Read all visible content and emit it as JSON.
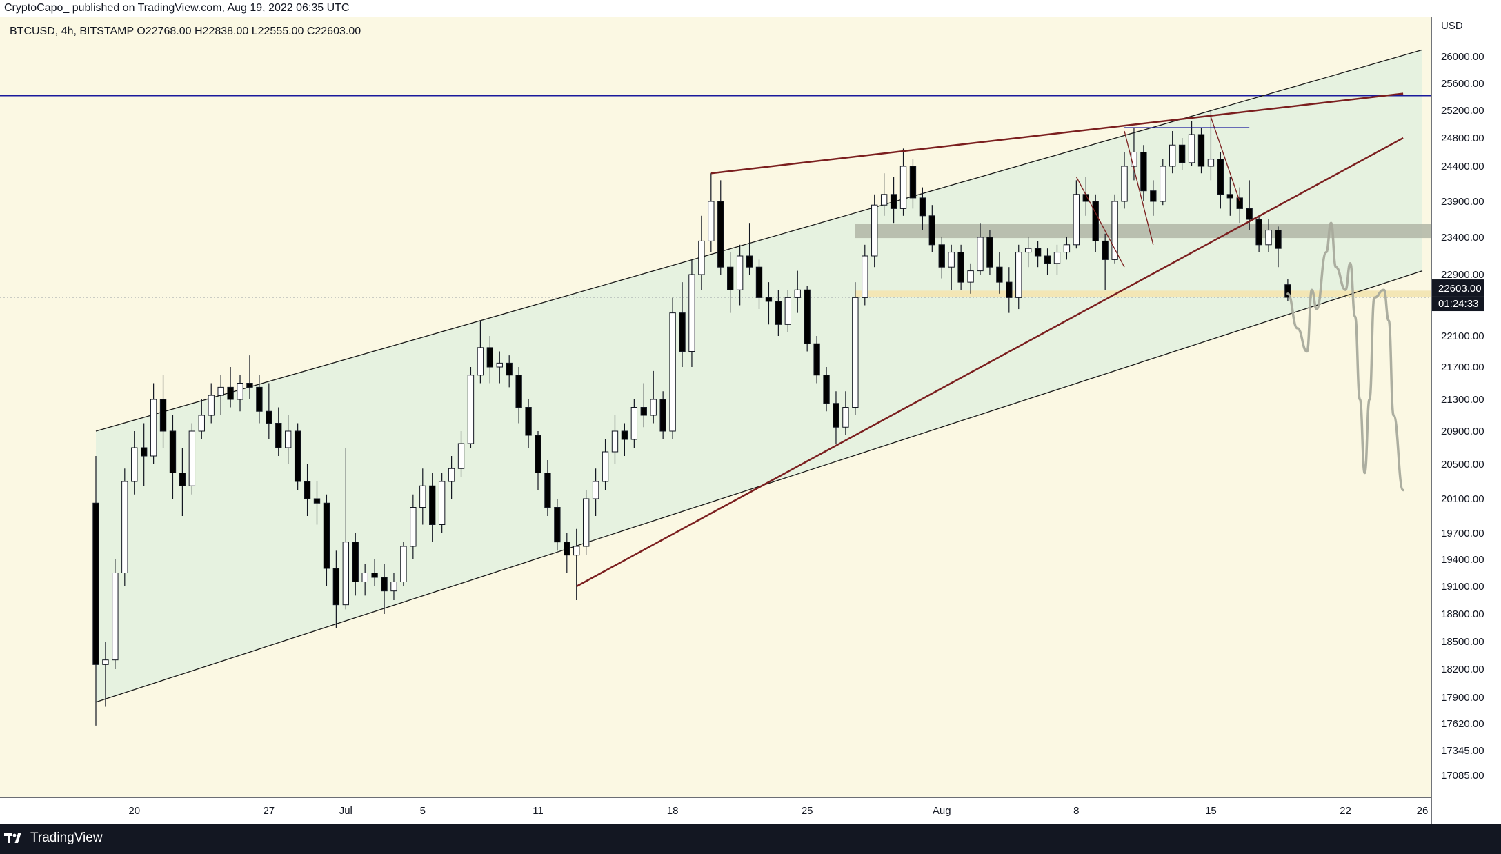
{
  "header": {
    "publish_info": "CryptoCapo_ published on TradingView.com, Aug 19, 2022 06:35 UTC"
  },
  "footer": {
    "brand": "TradingView"
  },
  "colors": {
    "background": "#fbf8e3",
    "channel_fill": "#e6f2e0",
    "candle_up": "#ffffff",
    "candle_down": "#000000",
    "candle_border": "#131722",
    "trendline": "#7b1f1f",
    "horizontal_level": "#1a1a9c",
    "resistance_zone": "#b0b6a6",
    "support_zone": "#f3e6b5",
    "projection": "#a8aa9c",
    "price_label_bg": "#131722"
  },
  "chart_data": {
    "type": "candlestick",
    "symbol": "BTCUSD",
    "timeframe": "4h",
    "exchange": "BITSTAMP",
    "ohlc": {
      "open": "O22768.00",
      "high": "H22838.00",
      "low": "L22555.00",
      "close": "C22603.00"
    },
    "currency": "USD",
    "y_axis_ticks": [
      "26000.00",
      "25600.00",
      "25200.00",
      "24800.00",
      "24400.00",
      "23900.00",
      "23400.00",
      "22900.00",
      "22100.00",
      "21700.00",
      "21300.00",
      "20900.00",
      "20500.00",
      "20100.00",
      "19700.00",
      "19400.00",
      "19100.00",
      "18800.00",
      "18500.00",
      "18200.00",
      "17900.00",
      "17620.00",
      "17345.00",
      "17085.00"
    ],
    "x_axis_ticks": [
      "20",
      "27",
      "Jul",
      "5",
      "11",
      "18",
      "25",
      "Aug",
      "8",
      "15",
      "22",
      "26"
    ],
    "last_price": "22603.00",
    "countdown": "01:24:33",
    "horizontal_level": 25420,
    "resistance_zone": [
      23390,
      23590
    ],
    "support_zone": [
      22610,
      22690
    ],
    "candles": [
      {
        "d": "Jun 18 00:00",
        "o": 20050,
        "h": 20600,
        "l": 17600,
        "c": 18250
      },
      {
        "d": "Jun 18 12:00",
        "o": 18250,
        "h": 18500,
        "l": 17800,
        "c": 18300
      },
      {
        "d": "Jun 19 00:00",
        "o": 18300,
        "h": 19400,
        "l": 18200,
        "c": 19250
      },
      {
        "d": "Jun 19 12:00",
        "o": 19250,
        "h": 20450,
        "l": 19100,
        "c": 20300
      },
      {
        "d": "Jun 20 00:00",
        "o": 20300,
        "h": 20900,
        "l": 20150,
        "c": 20700
      },
      {
        "d": "Jun 20 12:00",
        "o": 20700,
        "h": 21000,
        "l": 20250,
        "c": 20600
      },
      {
        "d": "Jun 21 00:00",
        "o": 20600,
        "h": 21500,
        "l": 20500,
        "c": 21300
      },
      {
        "d": "Jun 21 12:00",
        "o": 21300,
        "h": 21600,
        "l": 20700,
        "c": 20900
      },
      {
        "d": "Jun 22 00:00",
        "o": 20900,
        "h": 21100,
        "l": 20100,
        "c": 20400
      },
      {
        "d": "Jun 22 12:00",
        "o": 20400,
        "h": 20700,
        "l": 19900,
        "c": 20250
      },
      {
        "d": "Jun 23 00:00",
        "o": 20250,
        "h": 21000,
        "l": 20150,
        "c": 20900
      },
      {
        "d": "Jun 23 12:00",
        "o": 20900,
        "h": 21300,
        "l": 20800,
        "c": 21100
      },
      {
        "d": "Jun 24 00:00",
        "o": 21100,
        "h": 21500,
        "l": 21000,
        "c": 21350
      },
      {
        "d": "Jun 24 12:00",
        "o": 21350,
        "h": 21600,
        "l": 21100,
        "c": 21450
      },
      {
        "d": "Jun 25 00:00",
        "o": 21450,
        "h": 21700,
        "l": 21200,
        "c": 21300
      },
      {
        "d": "Jun 25 12:00",
        "o": 21300,
        "h": 21600,
        "l": 21150,
        "c": 21500
      },
      {
        "d": "Jun 26 00:00",
        "o": 21500,
        "h": 21850,
        "l": 21300,
        "c": 21450
      },
      {
        "d": "Jun 26 12:00",
        "o": 21450,
        "h": 21600,
        "l": 21000,
        "c": 21150
      },
      {
        "d": "Jun 27 00:00",
        "o": 21150,
        "h": 21500,
        "l": 20800,
        "c": 21000
      },
      {
        "d": "Jun 27 12:00",
        "o": 21000,
        "h": 21200,
        "l": 20600,
        "c": 20700
      },
      {
        "d": "Jun 28 00:00",
        "o": 20700,
        "h": 21100,
        "l": 20500,
        "c": 20900
      },
      {
        "d": "Jun 28 12:00",
        "o": 20900,
        "h": 21000,
        "l": 20200,
        "c": 20300
      },
      {
        "d": "Jun 29 00:00",
        "o": 20300,
        "h": 20500,
        "l": 19900,
        "c": 20100
      },
      {
        "d": "Jun 29 12:00",
        "o": 20100,
        "h": 20300,
        "l": 19800,
        "c": 20050
      },
      {
        "d": "Jun 30 00:00",
        "o": 20050,
        "h": 20150,
        "l": 19100,
        "c": 19300
      },
      {
        "d": "Jun 30 12:00",
        "o": 19300,
        "h": 19500,
        "l": 18650,
        "c": 18900
      },
      {
        "d": "Jul 1 00:00",
        "o": 18900,
        "h": 20700,
        "l": 18850,
        "c": 19600
      },
      {
        "d": "Jul 1 12:00",
        "o": 19600,
        "h": 19700,
        "l": 19000,
        "c": 19150
      },
      {
        "d": "Jul 2 00:00",
        "o": 19150,
        "h": 19350,
        "l": 19000,
        "c": 19250
      },
      {
        "d": "Jul 2 12:00",
        "o": 19250,
        "h": 19400,
        "l": 19100,
        "c": 19200
      },
      {
        "d": "Jul 3 00:00",
        "o": 19200,
        "h": 19350,
        "l": 18800,
        "c": 19050
      },
      {
        "d": "Jul 3 12:00",
        "o": 19050,
        "h": 19250,
        "l": 18950,
        "c": 19150
      },
      {
        "d": "Jul 4 00:00",
        "o": 19150,
        "h": 19600,
        "l": 19100,
        "c": 19550
      },
      {
        "d": "Jul 4 12:00",
        "o": 19550,
        "h": 20150,
        "l": 19400,
        "c": 20000
      },
      {
        "d": "Jul 5 00:00",
        "o": 20000,
        "h": 20450,
        "l": 19800,
        "c": 20250
      },
      {
        "d": "Jul 5 12:00",
        "o": 20250,
        "h": 20400,
        "l": 19600,
        "c": 19800
      },
      {
        "d": "Jul 6 00:00",
        "o": 19800,
        "h": 20400,
        "l": 19700,
        "c": 20300
      },
      {
        "d": "Jul 6 12:00",
        "o": 20300,
        "h": 20600,
        "l": 20100,
        "c": 20450
      },
      {
        "d": "Jul 7 00:00",
        "o": 20450,
        "h": 20900,
        "l": 20350,
        "c": 20750
      },
      {
        "d": "Jul 7 12:00",
        "o": 20750,
        "h": 21700,
        "l": 20700,
        "c": 21600
      },
      {
        "d": "Jul 8 00:00",
        "o": 21600,
        "h": 22300,
        "l": 21500,
        "c": 21950
      },
      {
        "d": "Jul 8 12:00",
        "o": 21950,
        "h": 22100,
        "l": 21500,
        "c": 21700
      },
      {
        "d": "Jul 9 00:00",
        "o": 21700,
        "h": 21900,
        "l": 21500,
        "c": 21750
      },
      {
        "d": "Jul 9 12:00",
        "o": 21750,
        "h": 21850,
        "l": 21450,
        "c": 21600
      },
      {
        "d": "Jul 10 00:00",
        "o": 21600,
        "h": 21700,
        "l": 21000,
        "c": 21200
      },
      {
        "d": "Jul 10 12:00",
        "o": 21200,
        "h": 21300,
        "l": 20700,
        "c": 20850
      },
      {
        "d": "Jul 11 00:00",
        "o": 20850,
        "h": 20900,
        "l": 20200,
        "c": 20400
      },
      {
        "d": "Jul 11 12:00",
        "o": 20400,
        "h": 20550,
        "l": 19900,
        "c": 20000
      },
      {
        "d": "Jul 12 00:00",
        "o": 20000,
        "h": 20100,
        "l": 19500,
        "c": 19600
      },
      {
        "d": "Jul 12 12:00",
        "o": 19600,
        "h": 19700,
        "l": 19250,
        "c": 19450
      },
      {
        "d": "Jul 13 00:00",
        "o": 19450,
        "h": 19750,
        "l": 18950,
        "c": 19550
      },
      {
        "d": "Jul 13 12:00",
        "o": 19550,
        "h": 20200,
        "l": 19450,
        "c": 20100
      },
      {
        "d": "Jul 14 00:00",
        "o": 20100,
        "h": 20450,
        "l": 19900,
        "c": 20300
      },
      {
        "d": "Jul 14 12:00",
        "o": 20300,
        "h": 20800,
        "l": 20200,
        "c": 20650
      },
      {
        "d": "Jul 15 00:00",
        "o": 20650,
        "h": 21100,
        "l": 20500,
        "c": 20900
      },
      {
        "d": "Jul 15 12:00",
        "o": 20900,
        "h": 21000,
        "l": 20600,
        "c": 20800
      },
      {
        "d": "Jul 16 00:00",
        "o": 20800,
        "h": 21300,
        "l": 20700,
        "c": 21200
      },
      {
        "d": "Jul 16 12:00",
        "o": 21200,
        "h": 21500,
        "l": 20950,
        "c": 21100
      },
      {
        "d": "Jul 17 00:00",
        "o": 21100,
        "h": 21650,
        "l": 21000,
        "c": 21300
      },
      {
        "d": "Jul 17 12:00",
        "o": 21300,
        "h": 21400,
        "l": 20800,
        "c": 20900
      },
      {
        "d": "Jul 18 00:00",
        "o": 20900,
        "h": 22600,
        "l": 20800,
        "c": 22400
      },
      {
        "d": "Jul 18 12:00",
        "o": 22400,
        "h": 22800,
        "l": 21700,
        "c": 21900
      },
      {
        "d": "Jul 19 00:00",
        "o": 21900,
        "h": 23100,
        "l": 21700,
        "c": 22900
      },
      {
        "d": "Jul 19 12:00",
        "o": 22900,
        "h": 23700,
        "l": 22700,
        "c": 23350
      },
      {
        "d": "Jul 20 00:00",
        "o": 23350,
        "h": 24300,
        "l": 23200,
        "c": 23900
      },
      {
        "d": "Jul 20 12:00",
        "o": 23900,
        "h": 24200,
        "l": 22900,
        "c": 23000
      },
      {
        "d": "Jul 21 00:00",
        "o": 23000,
        "h": 23200,
        "l": 22400,
        "c": 22700
      },
      {
        "d": "Jul 21 12:00",
        "o": 22700,
        "h": 23300,
        "l": 22500,
        "c": 23150
      },
      {
        "d": "Jul 22 00:00",
        "o": 23150,
        "h": 23600,
        "l": 22900,
        "c": 23000
      },
      {
        "d": "Jul 22 12:00",
        "o": 23000,
        "h": 23100,
        "l": 22450,
        "c": 22600
      },
      {
        "d": "Jul 23 00:00",
        "o": 22600,
        "h": 22800,
        "l": 22250,
        "c": 22550
      },
      {
        "d": "Jul 23 12:00",
        "o": 22550,
        "h": 22700,
        "l": 22100,
        "c": 22250
      },
      {
        "d": "Jul 24 00:00",
        "o": 22250,
        "h": 22700,
        "l": 22150,
        "c": 22600
      },
      {
        "d": "Jul 24 12:00",
        "o": 22600,
        "h": 22950,
        "l": 22400,
        "c": 22700
      },
      {
        "d": "Jul 25 00:00",
        "o": 22700,
        "h": 22750,
        "l": 21900,
        "c": 22000
      },
      {
        "d": "Jul 25 12:00",
        "o": 22000,
        "h": 22100,
        "l": 21500,
        "c": 21600
      },
      {
        "d": "Jul 26 00:00",
        "o": 21600,
        "h": 21700,
        "l": 21150,
        "c": 21250
      },
      {
        "d": "Jul 26 12:00",
        "o": 21250,
        "h": 21400,
        "l": 20750,
        "c": 20950
      },
      {
        "d": "Jul 27 00:00",
        "o": 20950,
        "h": 21400,
        "l": 20850,
        "c": 21200
      },
      {
        "d": "Jul 27 12:00",
        "o": 21200,
        "h": 22800,
        "l": 21100,
        "c": 22600
      },
      {
        "d": "Jul 28 00:00",
        "o": 22600,
        "h": 23300,
        "l": 22500,
        "c": 23150
      },
      {
        "d": "Jul 28 12:00",
        "o": 23150,
        "h": 24000,
        "l": 23000,
        "c": 23850
      },
      {
        "d": "Jul 29 00:00",
        "o": 23850,
        "h": 24300,
        "l": 23700,
        "c": 24000
      },
      {
        "d": "Jul 29 12:00",
        "o": 24000,
        "h": 24250,
        "l": 23600,
        "c": 23800
      },
      {
        "d": "Jul 30 00:00",
        "o": 23800,
        "h": 24650,
        "l": 23700,
        "c": 24400
      },
      {
        "d": "Jul 30 12:00",
        "o": 24400,
        "h": 24500,
        "l": 23800,
        "c": 23950
      },
      {
        "d": "Jul 31 00:00",
        "o": 23950,
        "h": 24100,
        "l": 23500,
        "c": 23700
      },
      {
        "d": "Jul 31 12:00",
        "o": 23700,
        "h": 23850,
        "l": 23200,
        "c": 23300
      },
      {
        "d": "Aug 1 00:00",
        "o": 23300,
        "h": 23400,
        "l": 22850,
        "c": 23000
      },
      {
        "d": "Aug 1 12:00",
        "o": 23000,
        "h": 23300,
        "l": 22700,
        "c": 23200
      },
      {
        "d": "Aug 2 00:00",
        "o": 23200,
        "h": 23300,
        "l": 22700,
        "c": 22800
      },
      {
        "d": "Aug 2 12:00",
        "o": 22800,
        "h": 23050,
        "l": 22650,
        "c": 22950
      },
      {
        "d": "Aug 3 00:00",
        "o": 22950,
        "h": 23600,
        "l": 22900,
        "c": 23400
      },
      {
        "d": "Aug 3 12:00",
        "o": 23400,
        "h": 23500,
        "l": 22900,
        "c": 23000
      },
      {
        "d": "Aug 4 00:00",
        "o": 23000,
        "h": 23200,
        "l": 22650,
        "c": 22800
      },
      {
        "d": "Aug 4 12:00",
        "o": 22800,
        "h": 23000,
        "l": 22400,
        "c": 22600
      },
      {
        "d": "Aug 5 00:00",
        "o": 22600,
        "h": 23300,
        "l": 22450,
        "c": 23200
      },
      {
        "d": "Aug 5 12:00",
        "o": 23200,
        "h": 23400,
        "l": 23000,
        "c": 23250
      },
      {
        "d": "Aug 6 00:00",
        "o": 23250,
        "h": 23350,
        "l": 23000,
        "c": 23150
      },
      {
        "d": "Aug 6 12:00",
        "o": 23150,
        "h": 23250,
        "l": 22900,
        "c": 23050
      },
      {
        "d": "Aug 7 00:00",
        "o": 23050,
        "h": 23300,
        "l": 22900,
        "c": 23200
      },
      {
        "d": "Aug 7 12:00",
        "o": 23200,
        "h": 23400,
        "l": 23100,
        "c": 23300
      },
      {
        "d": "Aug 8 00:00",
        "o": 23300,
        "h": 24200,
        "l": 23250,
        "c": 24000
      },
      {
        "d": "Aug 8 12:00",
        "o": 24000,
        "h": 24250,
        "l": 23700,
        "c": 23900
      },
      {
        "d": "Aug 9 00:00",
        "o": 23900,
        "h": 24000,
        "l": 23200,
        "c": 23350
      },
      {
        "d": "Aug 9 12:00",
        "o": 23350,
        "h": 23450,
        "l": 22700,
        "c": 23100
      },
      {
        "d": "Aug 10 00:00",
        "o": 23100,
        "h": 24000,
        "l": 23050,
        "c": 23900
      },
      {
        "d": "Aug 10 12:00",
        "o": 23900,
        "h": 24600,
        "l": 23800,
        "c": 24400
      },
      {
        "d": "Aug 11 00:00",
        "o": 24400,
        "h": 24950,
        "l": 24200,
        "c": 24600
      },
      {
        "d": "Aug 11 12:00",
        "o": 24600,
        "h": 24700,
        "l": 23900,
        "c": 24050
      },
      {
        "d": "Aug 12 00:00",
        "o": 24050,
        "h": 24200,
        "l": 23700,
        "c": 23900
      },
      {
        "d": "Aug 12 12:00",
        "o": 23900,
        "h": 24500,
        "l": 23850,
        "c": 24400
      },
      {
        "d": "Aug 13 00:00",
        "o": 24400,
        "h": 24900,
        "l": 24300,
        "c": 24700
      },
      {
        "d": "Aug 13 12:00",
        "o": 24700,
        "h": 24800,
        "l": 24350,
        "c": 24450
      },
      {
        "d": "Aug 14 00:00",
        "o": 24450,
        "h": 25050,
        "l": 24400,
        "c": 24850
      },
      {
        "d": "Aug 14 12:00",
        "o": 24850,
        "h": 24950,
        "l": 24300,
        "c": 24400
      },
      {
        "d": "Aug 15 00:00",
        "o": 24400,
        "h": 25200,
        "l": 24200,
        "c": 24500
      },
      {
        "d": "Aug 15 12:00",
        "o": 24500,
        "h": 24600,
        "l": 23800,
        "c": 24000
      },
      {
        "d": "Aug 16 00:00",
        "o": 24000,
        "h": 24250,
        "l": 23700,
        "c": 23950
      },
      {
        "d": "Aug 16 12:00",
        "o": 23950,
        "h": 24100,
        "l": 23600,
        "c": 23800
      },
      {
        "d": "Aug 17 00:00",
        "o": 23800,
        "h": 24200,
        "l": 23500,
        "c": 23650
      },
      {
        "d": "Aug 17 12:00",
        "o": 23650,
        "h": 23700,
        "l": 23200,
        "c": 23300
      },
      {
        "d": "Aug 18 00:00",
        "o": 23300,
        "h": 23650,
        "l": 23200,
        "c": 23500
      },
      {
        "d": "Aug 18 12:00",
        "o": 23500,
        "h": 23550,
        "l": 23000,
        "c": 23250
      },
      {
        "d": "Aug 19 00:00",
        "o": 22768,
        "h": 22838,
        "l": 22555,
        "c": 22603
      }
    ],
    "drawings": {
      "channel_upper": [
        {
          "d": "Jun 18 00:00",
          "p": 20900
        },
        {
          "d": "Aug 26 00:00",
          "p": 26100
        }
      ],
      "channel_lower": [
        {
          "d": "Jun 18 00:00",
          "p": 17850
        },
        {
          "d": "Aug 26 00:00",
          "p": 22950
        }
      ],
      "rising_trendline": [
        {
          "d": "Jul 13 00:00",
          "p": 19100
        },
        {
          "d": "Aug 25 00:00",
          "p": 24800
        }
      ],
      "resistance_trendline": [
        {
          "d": "Jul 20 00:00",
          "p": 24300
        },
        {
          "d": "Aug 25 00:00",
          "p": 25450
        }
      ],
      "top_flat_line": [
        {
          "d": "Aug 10 12:00",
          "p": 24950
        },
        {
          "d": "Aug 17 00:00",
          "p": 24950
        }
      ],
      "flag_line_1": [
        {
          "d": "Aug 8 00:00",
          "p": 24250
        },
        {
          "d": "Aug 10 12:00",
          "p": 23000
        }
      ],
      "flag_line_2": [
        {
          "d": "Aug 10 12:00",
          "p": 24900
        },
        {
          "d": "Aug 12 00:00",
          "p": 23300
        }
      ],
      "flag_line_3": [
        {
          "d": "Aug 15 00:00",
          "p": 25100
        },
        {
          "d": "Aug 16 12:00",
          "p": 23900
        }
      ]
    },
    "projection_path": [
      {
        "d": "Aug 19 00:00",
        "p": 22650
      },
      {
        "d": "Aug 19 12:00",
        "p": 22200
      },
      {
        "d": "Aug 20 00:00",
        "p": 21900
      },
      {
        "d": "Aug 20 06:00",
        "p": 22700
      },
      {
        "d": "Aug 20 12:00",
        "p": 22450
      },
      {
        "d": "Aug 21 00:00",
        "p": 23200
      },
      {
        "d": "Aug 21 06:00",
        "p": 23600
      },
      {
        "d": "Aug 21 12:00",
        "p": 23000
      },
      {
        "d": "Aug 22 00:00",
        "p": 22700
      },
      {
        "d": "Aug 22 06:00",
        "p": 23050
      },
      {
        "d": "Aug 22 12:00",
        "p": 22350
      },
      {
        "d": "Aug 22 18:00",
        "p": 21300
      },
      {
        "d": "Aug 23 00:00",
        "p": 20400
      },
      {
        "d": "Aug 23 06:00",
        "p": 21300
      },
      {
        "d": "Aug 23 12:00",
        "p": 22600
      },
      {
        "d": "Aug 24 00:00",
        "p": 22700
      },
      {
        "d": "Aug 24 06:00",
        "p": 22300
      },
      {
        "d": "Aug 24 12:00",
        "p": 21100
      },
      {
        "d": "Aug 25 00:00",
        "p": 20200
      }
    ]
  }
}
